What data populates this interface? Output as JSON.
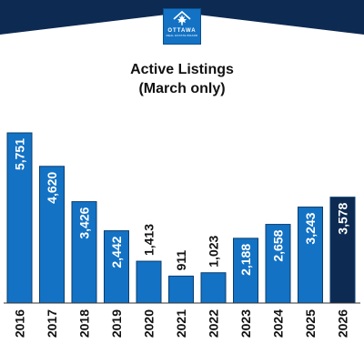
{
  "logo": {
    "line1": "OTTAWA",
    "line2": "REAL ESTATE BOARD"
  },
  "chart_data": {
    "type": "bar",
    "title": "Active Listings",
    "subtitle": "(March only)",
    "xlabel": "",
    "ylabel": "",
    "categories": [
      "2016",
      "2017",
      "2018",
      "2019",
      "2020",
      "2021",
      "2022",
      "2023",
      "2024",
      "2025",
      "2026"
    ],
    "values": [
      5751,
      4620,
      3426,
      2442,
      1413,
      911,
      1023,
      2188,
      2658,
      3243,
      3578
    ],
    "value_labels": [
      "5,751",
      "4,620",
      "3,426",
      "2,442",
      "1,413",
      "911",
      "1,023",
      "2,188",
      "2,658",
      "3,243",
      "3,578"
    ],
    "ylim": [
      0,
      5751
    ],
    "grid": false,
    "legend": "none",
    "highlight_category": "2026",
    "colors": {
      "bar": "#1372c4",
      "highlight_bar": "#0d2a52",
      "bar_border": "#0a3d6e",
      "header_band": "#0d2a52",
      "label_inside": "#ffffff",
      "label_outside": "#111111"
    }
  }
}
